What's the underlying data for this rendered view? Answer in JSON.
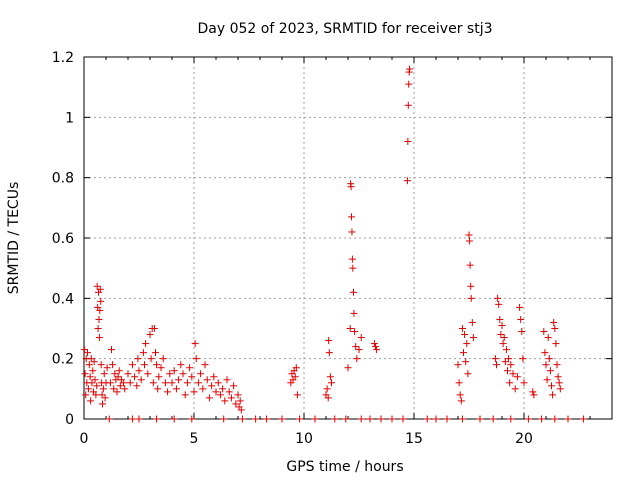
{
  "chart_data": {
    "type": "scatter",
    "title": "Day 052 of 2023, SRMTID for receiver stj3",
    "xlabel": "GPS time / hours",
    "ylabel": "SRMTID / TECUs",
    "xlim": [
      0,
      24
    ],
    "ylim": [
      0,
      1.2
    ],
    "xticks": [
      0,
      5,
      10,
      15,
      20
    ],
    "yticks": [
      0,
      0.2,
      0.4,
      0.6,
      0.8,
      1.0,
      1.2
    ],
    "xtick_labels": [
      "0",
      "5",
      "10",
      "15",
      "20"
    ],
    "ytick_labels": [
      "0",
      "0.2",
      "0.4",
      "0.6",
      "0.8",
      "1",
      "1.2"
    ],
    "grid": true,
    "marker": "+",
    "color": "#e00000",
    "series": [
      {
        "name": "SRMTID",
        "points": [
          [
            0.02,
            0.23
          ],
          [
            0.05,
            0.15
          ],
          [
            0.08,
            0.08
          ],
          [
            0.1,
            0.2
          ],
          [
            0.13,
            0.12
          ],
          [
            0.16,
            0.22
          ],
          [
            0.2,
            0.1
          ],
          [
            0.24,
            0.18
          ],
          [
            0.28,
            0.14
          ],
          [
            0.3,
            0.06
          ],
          [
            0.33,
            0.2
          ],
          [
            0.36,
            0.12
          ],
          [
            0.4,
            0.16
          ],
          [
            0.43,
            0.09
          ],
          [
            0.46,
            0.19
          ],
          [
            0.5,
            0.13
          ],
          [
            0.54,
            0.08
          ],
          [
            0.58,
            0.11
          ],
          [
            0.6,
            0.44
          ],
          [
            0.62,
            0.37
          ],
          [
            0.64,
            0.3
          ],
          [
            0.66,
            0.42
          ],
          [
            0.68,
            0.33
          ],
          [
            0.7,
            0.27
          ],
          [
            0.72,
            0.36
          ],
          [
            0.74,
            0.43
          ],
          [
            0.76,
            0.39
          ],
          [
            0.78,
            0.18
          ],
          [
            0.8,
            0.12
          ],
          [
            0.82,
            0.08
          ],
          [
            0.84,
            0.05
          ],
          [
            0.88,
            0.1
          ],
          [
            0.92,
            0.15
          ],
          [
            0.96,
            0.07
          ],
          [
            1.0,
            0.12
          ],
          [
            1.05,
            0.17
          ],
          [
            1.2,
            0.12
          ],
          [
            1.25,
            0.23
          ],
          [
            1.3,
            0.18
          ],
          [
            1.35,
            0.1
          ],
          [
            1.4,
            0.15
          ],
          [
            1.45,
            0.13
          ],
          [
            1.5,
            0.09
          ],
          [
            1.55,
            0.14
          ],
          [
            1.6,
            0.16
          ],
          [
            1.65,
            0.11
          ],
          [
            1.7,
            0.13
          ],
          [
            1.8,
            0.12
          ],
          [
            1.85,
            0.1
          ],
          [
            2.0,
            0.15
          ],
          [
            2.1,
            0.12
          ],
          [
            2.2,
            0.18
          ],
          [
            2.3,
            0.14
          ],
          [
            2.4,
            0.11
          ],
          [
            2.45,
            0.2
          ],
          [
            2.5,
            0.16
          ],
          [
            2.6,
            0.13
          ],
          [
            2.7,
            0.22
          ],
          [
            2.75,
            0.18
          ],
          [
            2.8,
            0.25
          ],
          [
            2.9,
            0.15
          ],
          [
            3.0,
            0.28
          ],
          [
            3.05,
            0.2
          ],
          [
            3.1,
            0.3
          ],
          [
            3.15,
            0.12
          ],
          [
            3.2,
            0.3
          ],
          [
            3.25,
            0.22
          ],
          [
            3.3,
            0.18
          ],
          [
            3.35,
            0.1
          ],
          [
            3.4,
            0.14
          ],
          [
            3.5,
            0.17
          ],
          [
            3.6,
            0.2
          ],
          [
            3.7,
            0.12
          ],
          [
            3.8,
            0.09
          ],
          [
            3.9,
            0.15
          ],
          [
            4.0,
            0.12
          ],
          [
            4.1,
            0.16
          ],
          [
            4.2,
            0.1
          ],
          [
            4.3,
            0.13
          ],
          [
            4.4,
            0.18
          ],
          [
            4.5,
            0.15
          ],
          [
            4.6,
            0.08
          ],
          [
            4.7,
            0.12
          ],
          [
            4.8,
            0.17
          ],
          [
            4.9,
            0.14
          ],
          [
            5.0,
            0.09
          ],
          [
            5.05,
            0.25
          ],
          [
            5.1,
            0.2
          ],
          [
            5.2,
            0.12
          ],
          [
            5.3,
            0.15
          ],
          [
            5.4,
            0.1
          ],
          [
            5.5,
            0.18
          ],
          [
            5.6,
            0.13
          ],
          [
            5.7,
            0.07
          ],
          [
            5.8,
            0.11
          ],
          [
            5.9,
            0.14
          ],
          [
            6.0,
            0.09
          ],
          [
            6.1,
            0.12
          ],
          [
            6.2,
            0.08
          ],
          [
            6.3,
            0.1
          ],
          [
            6.4,
            0.06
          ],
          [
            6.5,
            0.13
          ],
          [
            6.6,
            0.09
          ],
          [
            6.7,
            0.07
          ],
          [
            6.8,
            0.11
          ],
          [
            6.9,
            0.05
          ],
          [
            7.0,
            0.08
          ],
          [
            7.05,
            0.04
          ],
          [
            7.1,
            0.06
          ],
          [
            7.15,
            0.03
          ],
          [
            9.4,
            0.12
          ],
          [
            9.45,
            0.15
          ],
          [
            9.5,
            0.13
          ],
          [
            9.55,
            0.16
          ],
          [
            9.6,
            0.14
          ],
          [
            9.65,
            0.17
          ],
          [
            9.7,
            0.08
          ],
          [
            11.0,
            0.08
          ],
          [
            11.05,
            0.1
          ],
          [
            11.1,
            0.07
          ],
          [
            11.12,
            0.26
          ],
          [
            11.15,
            0.22
          ],
          [
            11.2,
            0.14
          ],
          [
            11.25,
            0.12
          ],
          [
            12.0,
            0.17
          ],
          [
            12.1,
            0.3
          ],
          [
            12.12,
            0.78
          ],
          [
            12.14,
            0.77
          ],
          [
            12.16,
            0.67
          ],
          [
            12.18,
            0.62
          ],
          [
            12.2,
            0.53
          ],
          [
            12.22,
            0.5
          ],
          [
            12.25,
            0.42
          ],
          [
            12.27,
            0.35
          ],
          [
            12.3,
            0.29
          ],
          [
            12.35,
            0.24
          ],
          [
            12.4,
            0.2
          ],
          [
            12.5,
            0.23
          ],
          [
            12.6,
            0.27
          ],
          [
            13.2,
            0.25
          ],
          [
            13.25,
            0.24
          ],
          [
            13.3,
            0.23
          ],
          [
            14.7,
            0.79
          ],
          [
            14.72,
            0.92
          ],
          [
            14.74,
            1.04
          ],
          [
            14.76,
            1.11
          ],
          [
            14.78,
            1.15
          ],
          [
            14.8,
            1.16
          ],
          [
            17.0,
            0.18
          ],
          [
            17.05,
            0.12
          ],
          [
            17.1,
            0.08
          ],
          [
            17.15,
            0.06
          ],
          [
            17.2,
            0.3
          ],
          [
            17.25,
            0.22
          ],
          [
            17.3,
            0.28
          ],
          [
            17.35,
            0.19
          ],
          [
            17.4,
            0.25
          ],
          [
            17.45,
            0.15
          ],
          [
            17.5,
            0.61
          ],
          [
            17.52,
            0.59
          ],
          [
            17.55,
            0.51
          ],
          [
            17.58,
            0.44
          ],
          [
            17.6,
            0.4
          ],
          [
            17.65,
            0.32
          ],
          [
            17.7,
            0.27
          ],
          [
            18.7,
            0.2
          ],
          [
            18.75,
            0.18
          ],
          [
            18.8,
            0.4
          ],
          [
            18.85,
            0.38
          ],
          [
            18.9,
            0.33
          ],
          [
            18.95,
            0.28
          ],
          [
            19.0,
            0.31
          ],
          [
            19.05,
            0.25
          ],
          [
            19.1,
            0.27
          ],
          [
            19.15,
            0.19
          ],
          [
            19.2,
            0.23
          ],
          [
            19.25,
            0.16
          ],
          [
            19.3,
            0.2
          ],
          [
            19.35,
            0.12
          ],
          [
            19.4,
            0.18
          ],
          [
            19.5,
            0.15
          ],
          [
            19.6,
            0.1
          ],
          [
            19.7,
            0.14
          ],
          [
            19.8,
            0.37
          ],
          [
            19.85,
            0.33
          ],
          [
            19.9,
            0.29
          ],
          [
            19.95,
            0.2
          ],
          [
            20.0,
            0.12
          ],
          [
            20.4,
            0.09
          ],
          [
            20.45,
            0.08
          ],
          [
            20.9,
            0.29
          ],
          [
            20.95,
            0.22
          ],
          [
            21.0,
            0.18
          ],
          [
            21.05,
            0.13
          ],
          [
            21.1,
            0.27
          ],
          [
            21.15,
            0.2
          ],
          [
            21.2,
            0.16
          ],
          [
            21.25,
            0.11
          ],
          [
            21.3,
            0.08
          ],
          [
            21.35,
            0.32
          ],
          [
            21.4,
            0.3
          ],
          [
            21.45,
            0.25
          ],
          [
            21.5,
            0.18
          ],
          [
            21.55,
            0.14
          ],
          [
            21.6,
            0.12
          ],
          [
            21.65,
            0.1
          ],
          [
            1.15,
            0
          ],
          [
            2.2,
            0
          ],
          [
            2.5,
            0
          ],
          [
            3.3,
            0
          ],
          [
            4.1,
            0
          ],
          [
            4.9,
            0
          ],
          [
            6.35,
            0
          ],
          [
            7.2,
            0
          ],
          [
            7.8,
            0
          ],
          [
            8.3,
            0
          ],
          [
            9.0,
            0
          ],
          [
            9.8,
            0
          ],
          [
            10.5,
            0
          ],
          [
            11.4,
            0
          ],
          [
            11.9,
            0
          ],
          [
            12.6,
            0
          ],
          [
            13.0,
            0
          ],
          [
            13.5,
            0
          ],
          [
            14.0,
            0
          ],
          [
            14.5,
            0
          ],
          [
            15.6,
            0
          ],
          [
            16.0,
            0
          ],
          [
            16.5,
            0
          ],
          [
            17.2,
            0
          ],
          [
            18.0,
            0
          ],
          [
            18.6,
            0
          ],
          [
            19.4,
            0
          ],
          [
            20.2,
            0
          ],
          [
            20.8,
            0
          ],
          [
            21.4,
            0
          ],
          [
            22.0,
            0
          ],
          [
            22.7,
            0
          ]
        ]
      }
    ]
  }
}
